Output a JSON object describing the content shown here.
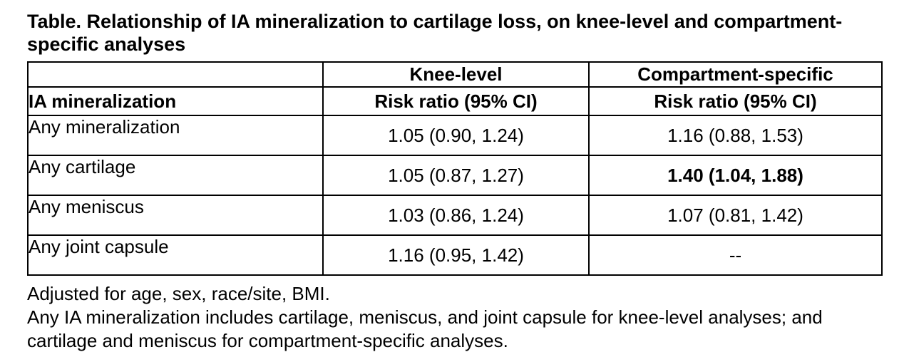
{
  "title": "Table. Relationship of IA mineralization to cartilage loss, on knee-level and compartment-specific analyses",
  "table": {
    "col_headers": [
      "",
      "Knee-level",
      "Compartment-specific"
    ],
    "subheader": [
      "IA mineralization",
      "Risk ratio (95% CI)",
      "Risk ratio (95% CI)"
    ],
    "rows": [
      {
        "label": "Any mineralization",
        "knee": "1.05 (0.90, 1.24)",
        "compartment": "1.16 (0.88, 1.53)",
        "compartment_bold": false
      },
      {
        "label": "Any cartilage",
        "knee": "1.05 (0.87, 1.27)",
        "compartment": "1.40 (1.04, 1.88)",
        "compartment_bold": true
      },
      {
        "label": "Any meniscus",
        "knee": "1.03 (0.86, 1.24)",
        "compartment": "1.07 (0.81, 1.42)",
        "compartment_bold": false
      },
      {
        "label": "Any joint capsule",
        "knee": "1.16 (0.95, 1.42)",
        "compartment": "--",
        "compartment_bold": false
      }
    ]
  },
  "footnotes": [
    "Adjusted for age, sex, race/site, BMI.",
    "Any IA mineralization includes cartilage, meniscus, and joint capsule for knee-level analyses; and cartilage and meniscus for compartment-specific analyses."
  ]
}
